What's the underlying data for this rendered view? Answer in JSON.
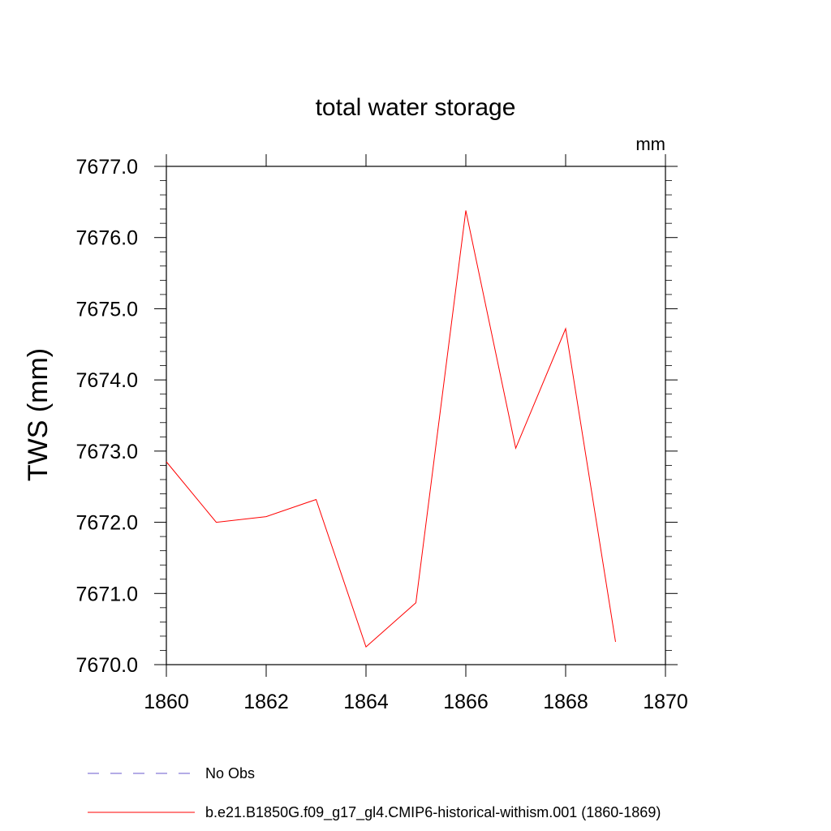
{
  "chart_data": {
    "type": "line",
    "title": "total water storage",
    "units_label": "mm",
    "xlabel": "",
    "ylabel": "TWS  (mm)",
    "xlim": [
      1860,
      1870
    ],
    "ylim": [
      7670.0,
      7677.0
    ],
    "x_ticks": [
      1860,
      1862,
      1864,
      1866,
      1868,
      1870
    ],
    "x_tick_labels": [
      "1860",
      "1862",
      "1864",
      "1866",
      "1868",
      "1870"
    ],
    "y_ticks": [
      7670.0,
      7671.0,
      7672.0,
      7673.0,
      7674.0,
      7675.0,
      7676.0,
      7677.0
    ],
    "y_tick_labels": [
      "7670.0",
      "7671.0",
      "7672.0",
      "7673.0",
      "7674.0",
      "7675.0",
      "7676.0",
      "7677.0"
    ],
    "grid": false,
    "legend_position": "bottom",
    "series": [
      {
        "name": "b.e21.B1850G.f09_g17_gl4.CMIP6-historical-withism.001 (1860-1869)",
        "color": "#ff0000",
        "style": "solid",
        "x": [
          1860,
          1861,
          1862,
          1863,
          1864,
          1865,
          1866,
          1867,
          1868,
          1869
        ],
        "y": [
          7672.85,
          7672.0,
          7672.08,
          7672.32,
          7670.25,
          7670.87,
          7676.38,
          7673.04,
          7674.72,
          7670.32
        ]
      }
    ],
    "legend": [
      {
        "label": "No Obs",
        "color": "#6a5acd",
        "style": "dashed"
      },
      {
        "label": "b.e21.B1850G.f09_g17_gl4.CMIP6-historical-withism.001 (1860-1869)",
        "color": "#ff0000",
        "style": "solid"
      }
    ]
  }
}
